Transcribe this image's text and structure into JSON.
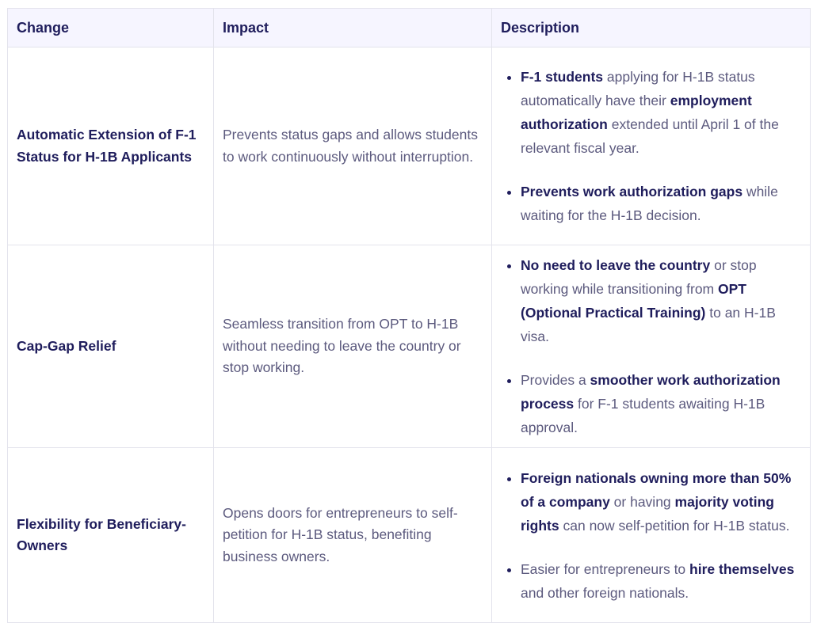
{
  "headers": {
    "change": "Change",
    "impact": "Impact",
    "description": "Description"
  },
  "rows": [
    {
      "change": "Automatic Extension of F-1 Status for H-1B Applicants",
      "impact": "Prevents status gaps and allows students to work continuously without interruption.",
      "bullets": [
        [
          {
            "t": "F-1 students",
            "b": true
          },
          {
            "t": " applying for H-1B status automatically have their ",
            "b": false
          },
          {
            "t": "employment authorization",
            "b": true
          },
          {
            "t": " extended until April 1 of the relevant fiscal year.",
            "b": false
          }
        ],
        [
          {
            "t": "Prevents work authorization gaps",
            "b": true
          },
          {
            "t": " while waiting for the H-1B decision.",
            "b": false
          }
        ]
      ]
    },
    {
      "change": "Cap-Gap Relief",
      "impact": "Seamless transition from OPT to H-1B without needing to leave the country or stop working.",
      "bullets": [
        [
          {
            "t": "No need to leave the country",
            "b": true
          },
          {
            "t": " or stop working while transitioning from ",
            "b": false
          },
          {
            "t": "OPT (Optional Practical Training)",
            "b": true
          },
          {
            "t": " to an H-1B visa.",
            "b": false
          }
        ],
        [
          {
            "t": "Provides a ",
            "b": false
          },
          {
            "t": "smoother work authorization process",
            "b": true
          },
          {
            "t": " for F-1 students awaiting H-1B approval.",
            "b": false
          }
        ]
      ]
    },
    {
      "change": "Flexibility for Beneficiary-Owners",
      "impact": "Opens doors for entrepreneurs to self-petition for H-1B status, benefiting business owners.",
      "bullets": [
        [
          {
            "t": "Foreign nationals owning more than 50% of a company",
            "b": true
          },
          {
            "t": " or having ",
            "b": false
          },
          {
            "t": "majority voting rights",
            "b": true
          },
          {
            "t": " can now self-petition for H-1B status.",
            "b": false
          }
        ],
        [
          {
            "t": "Easier for entrepreneurs to ",
            "b": false
          },
          {
            "t": "hire themselves",
            "b": true
          },
          {
            "t": " and other foreign nationals.",
            "b": false
          }
        ]
      ]
    }
  ]
}
